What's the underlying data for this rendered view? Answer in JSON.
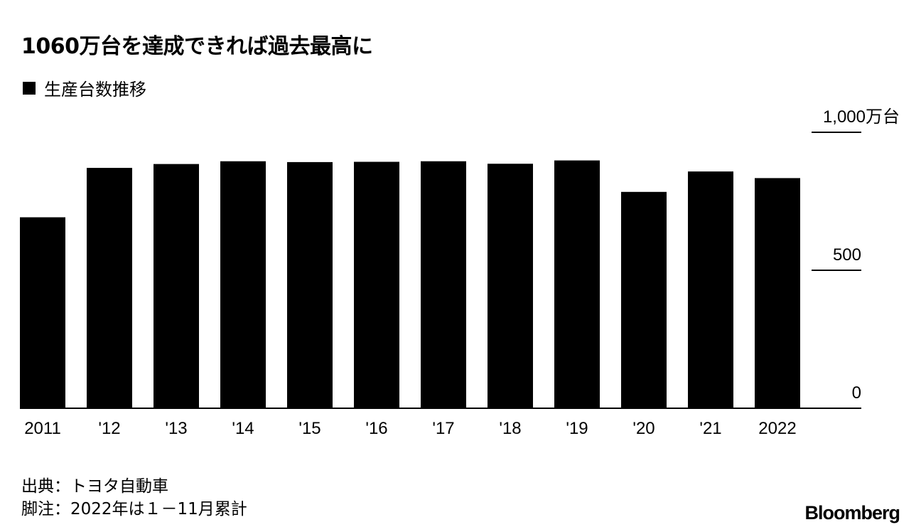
{
  "title": "1060万台を達成できれば過去最高に",
  "chart_data": {
    "type": "bar",
    "title": "1060万台を達成できれば過去最高に",
    "legend": [
      "生産台数推移"
    ],
    "categories": [
      "2011",
      "'12",
      "'13",
      "'14",
      "'15",
      "'16",
      "'17",
      "'18",
      "'19",
      "'20",
      "'21",
      "2022"
    ],
    "series": [
      {
        "name": "生産台数推移",
        "values": [
          692,
          871,
          885,
          895,
          892,
          893,
          895,
          886,
          898,
          784,
          858,
          834
        ]
      }
    ],
    "y_ticks": [
      0,
      500,
      1000
    ],
    "y_tick_labels": [
      "0",
      "500",
      "1,000万台"
    ],
    "ylim": [
      0,
      1000
    ],
    "y_axis_side": "right",
    "grid": false,
    "legend_position": "top-left",
    "bar_color": "#000000"
  },
  "footer": {
    "source": "出典：トヨタ自動車",
    "note": "脚注：2022年は１－11月累計",
    "brand": "Bloomberg"
  }
}
